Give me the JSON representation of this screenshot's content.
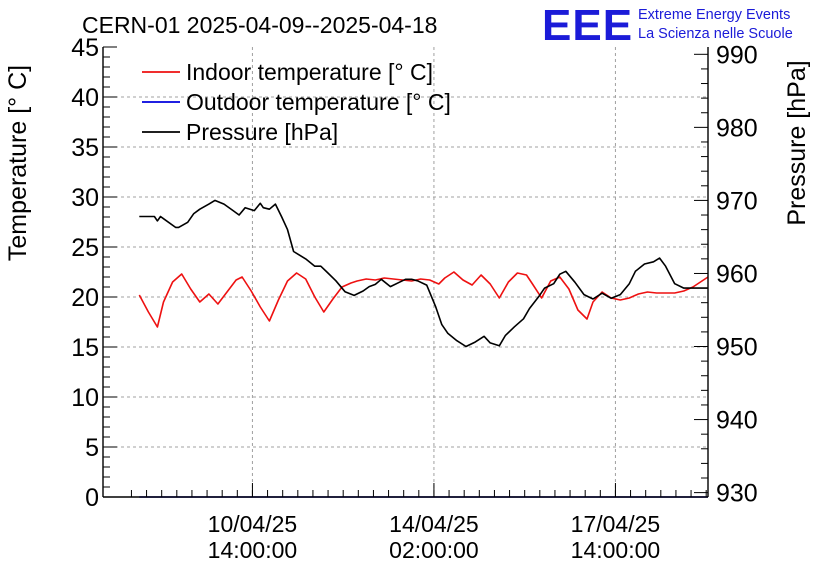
{
  "chart_data": {
    "type": "line",
    "title": "CERN-01 2025-04-09--2025-04-18",
    "logo": {
      "mark": "EEE",
      "line1": "Extreme Energy Events",
      "line2": "La Scienza nelle Scuole"
    },
    "ylabel": "Temperature [° C]",
    "y2label": "Pressure [hPa]",
    "ylim": [
      0,
      45
    ],
    "y2lim": [
      929.4,
      991
    ],
    "xlim": [
      0,
      10
    ],
    "yticks": [
      0,
      5,
      10,
      15,
      20,
      25,
      30,
      35,
      40,
      45
    ],
    "y2ticks": [
      930,
      940,
      950,
      960,
      970,
      980,
      990
    ],
    "xticks": [
      {
        "x": 2.47,
        "line1": "10/04/25",
        "line2": "14:00:00"
      },
      {
        "x": 5.47,
        "line1": "14/04/25",
        "line2": "02:00:00"
      },
      {
        "x": 8.47,
        "line1": "17/04/25",
        "line2": "14:00:00"
      }
    ],
    "grid": true,
    "legend": {
      "position": "top-left",
      "entries": [
        {
          "label": "Indoor temperature [° C]",
          "color": "#ee1111"
        },
        {
          "label": "Outdoor temperature [° C]",
          "color": "#0000dd"
        },
        {
          "label": "Pressure [hPa]",
          "color": "#000000"
        }
      ]
    },
    "series": [
      {
        "name": "Indoor temperature [° C]",
        "axis": "left",
        "color": "#ee1111",
        "x": [
          0.6,
          0.75,
          0.9,
          1.0,
          1.15,
          1.3,
          1.45,
          1.6,
          1.75,
          1.9,
          2.05,
          2.2,
          2.3,
          2.45,
          2.6,
          2.75,
          2.9,
          3.05,
          3.2,
          3.35,
          3.5,
          3.65,
          3.8,
          3.95,
          4.1,
          4.2,
          4.35,
          4.5,
          4.65,
          4.8,
          4.95,
          5.1,
          5.25,
          5.4,
          5.55,
          5.65,
          5.8,
          5.95,
          6.1,
          6.25,
          6.4,
          6.55,
          6.7,
          6.85,
          7.0,
          7.1,
          7.25,
          7.4,
          7.55,
          7.7,
          7.85,
          8.0,
          8.1,
          8.25,
          8.4,
          8.55,
          8.7,
          8.85,
          9.0,
          9.15,
          9.3,
          9.45,
          9.6,
          9.75,
          10.0
        ],
        "y": [
          20.2,
          18.5,
          17.0,
          19.5,
          21.5,
          22.3,
          20.8,
          19.5,
          20.3,
          19.3,
          20.5,
          21.7,
          22.0,
          20.6,
          19.0,
          17.6,
          19.7,
          21.6,
          22.4,
          21.8,
          20.0,
          18.5,
          19.8,
          21.0,
          21.4,
          21.6,
          21.8,
          21.7,
          21.9,
          21.8,
          21.7,
          21.6,
          21.8,
          21.7,
          21.3,
          21.9,
          22.5,
          21.7,
          21.2,
          22.2,
          21.3,
          19.9,
          21.5,
          22.4,
          22.2,
          21.3,
          19.9,
          21.6,
          22.0,
          20.8,
          18.7,
          17.8,
          19.5,
          20.5,
          19.9,
          19.7,
          19.9,
          20.3,
          20.5,
          20.4,
          20.4,
          20.4,
          20.6,
          21.0,
          22.0
        ]
      },
      {
        "name": "Outdoor temperature [° C]",
        "axis": "left",
        "color": "#0000dd",
        "x": [
          0.6,
          10.0
        ],
        "y": [
          0,
          0
        ]
      },
      {
        "name": "Pressure [hPa]",
        "axis": "right",
        "color": "#000000",
        "x": [
          0.6,
          0.85,
          0.9,
          0.95,
          1.0,
          1.2,
          1.25,
          1.4,
          1.5,
          1.6,
          1.75,
          1.85,
          2.0,
          2.15,
          2.25,
          2.35,
          2.5,
          2.6,
          2.65,
          2.75,
          2.85,
          2.95,
          3.05,
          3.15,
          3.25,
          3.35,
          3.5,
          3.6,
          3.7,
          3.85,
          4.0,
          4.15,
          4.3,
          4.4,
          4.5,
          4.6,
          4.75,
          4.9,
          5.0,
          5.1,
          5.2,
          5.35,
          5.5,
          5.6,
          5.7,
          5.85,
          6.0,
          6.15,
          6.3,
          6.4,
          6.55,
          6.65,
          6.8,
          6.95,
          7.05,
          7.2,
          7.3,
          7.45,
          7.55,
          7.65,
          7.8,
          7.95,
          8.1,
          8.25,
          8.4,
          8.55,
          8.7,
          8.8,
          8.95,
          9.1,
          9.2,
          9.3,
          9.45,
          9.6,
          9.75,
          9.9,
          10.0
        ],
        "y": [
          967.8,
          967.8,
          967.2,
          967.8,
          967.5,
          966.3,
          966.3,
          967.0,
          968.2,
          968.8,
          969.5,
          970.0,
          969.5,
          968.6,
          968.0,
          969.0,
          968.6,
          969.6,
          969.0,
          968.8,
          969.5,
          967.8,
          966.0,
          963.0,
          962.5,
          962.0,
          961.0,
          961.0,
          960.2,
          959.0,
          957.5,
          957.0,
          957.6,
          958.2,
          958.5,
          959.2,
          958.2,
          958.8,
          959.2,
          959.2,
          959.0,
          958.4,
          955.4,
          953.0,
          951.8,
          950.8,
          950.0,
          950.6,
          951.4,
          950.5,
          950.1,
          951.5,
          952.7,
          953.8,
          955.2,
          956.8,
          958.0,
          958.6,
          959.9,
          960.3,
          958.8,
          957.1,
          956.5,
          957.3,
          956.6,
          957.1,
          958.6,
          960.3,
          961.3,
          961.6,
          962.1,
          961.0,
          958.6,
          958.0,
          958.0,
          958.0,
          958.0
        ]
      }
    ]
  }
}
